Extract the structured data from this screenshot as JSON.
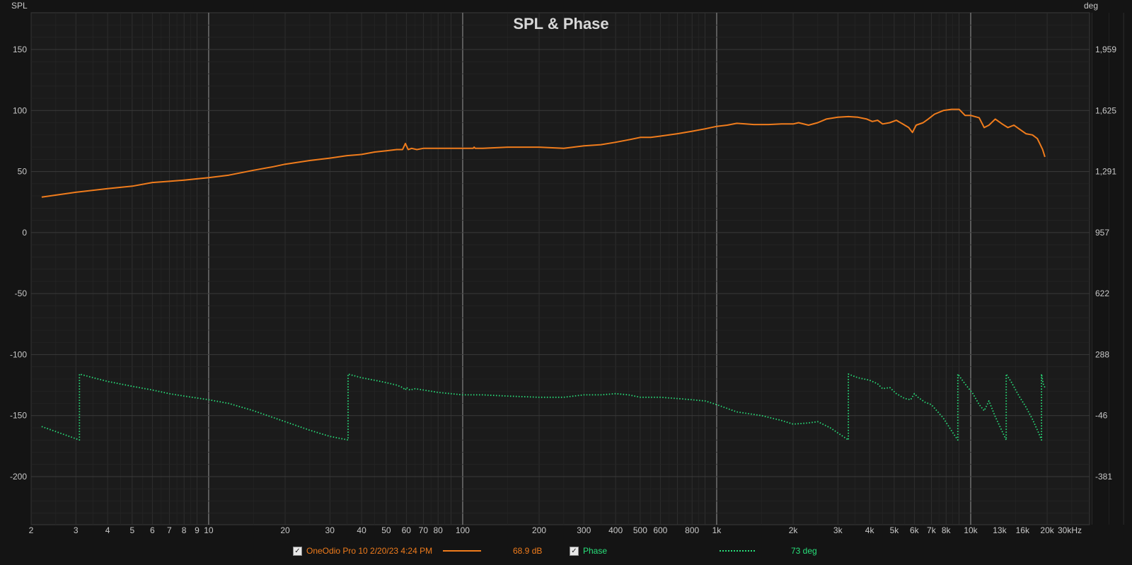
{
  "chart_data": {
    "type": "line",
    "title": "SPL & Phase",
    "xscale": "log",
    "xlim": [
      2,
      40000
    ],
    "x_ticks": [
      {
        "v": 2,
        "label": "2"
      },
      {
        "v": 3,
        "label": "3"
      },
      {
        "v": 4,
        "label": "4"
      },
      {
        "v": 5,
        "label": "5"
      },
      {
        "v": 6,
        "label": "6"
      },
      {
        "v": 7,
        "label": "7"
      },
      {
        "v": 8,
        "label": "8"
      },
      {
        "v": 9,
        "label": "9"
      },
      {
        "v": 10,
        "label": "10"
      },
      {
        "v": 20,
        "label": "20"
      },
      {
        "v": 30,
        "label": "30"
      },
      {
        "v": 40,
        "label": "40"
      },
      {
        "v": 50,
        "label": "50"
      },
      {
        "v": 60,
        "label": "60"
      },
      {
        "v": 70,
        "label": "70"
      },
      {
        "v": 80,
        "label": "80"
      },
      {
        "v": 100,
        "label": "100"
      },
      {
        "v": 200,
        "label": "200"
      },
      {
        "v": 300,
        "label": "300"
      },
      {
        "v": 400,
        "label": "400"
      },
      {
        "v": 500,
        "label": "500"
      },
      {
        "v": 600,
        "label": "600"
      },
      {
        "v": 800,
        "label": "800"
      },
      {
        "v": 1000,
        "label": "1k"
      },
      {
        "v": 2000,
        "label": "2k"
      },
      {
        "v": 3000,
        "label": "3k"
      },
      {
        "v": 4000,
        "label": "4k"
      },
      {
        "v": 5000,
        "label": "5k"
      },
      {
        "v": 6000,
        "label": "6k"
      },
      {
        "v": 7000,
        "label": "7k"
      },
      {
        "v": 8000,
        "label": "8k"
      },
      {
        "v": 10000,
        "label": "10k"
      },
      {
        "v": 13000,
        "label": "13k"
      },
      {
        "v": 16000,
        "label": "16k"
      },
      {
        "v": 20000,
        "label": "20k"
      },
      {
        "v": 30000,
        "label": "30kHz"
      }
    ],
    "y_left": {
      "label": "SPL",
      "lim": [
        -240,
        180
      ],
      "ticks": [
        150,
        100,
        50,
        0,
        -50,
        -100,
        -150,
        -200
      ]
    },
    "y_right": {
      "label": "deg",
      "ticks": [
        "1,959",
        "1,625",
        "1,291",
        "957",
        "622",
        "288",
        "-46",
        "-381"
      ]
    },
    "series": [
      {
        "name": "OneOdio Pro 10 2/20/23 4:24 PM",
        "color": "#f07c1c",
        "style": "solid",
        "readout": "68.9 dB",
        "x": [
          2.2,
          3,
          4,
          5,
          6,
          7,
          8,
          9,
          10,
          12,
          15,
          18,
          20,
          25,
          30,
          35,
          40,
          45,
          50,
          55,
          58,
          59.5,
          61,
          63,
          66,
          70,
          80,
          100,
          110,
          111,
          112,
          120,
          150,
          200,
          250,
          300,
          350,
          400,
          450,
          500,
          550,
          600,
          700,
          800,
          900,
          1000,
          1100,
          1200,
          1300,
          1400,
          1600,
          1800,
          2000,
          2100,
          2300,
          2500,
          2700,
          3000,
          3300,
          3600,
          3900,
          4100,
          4300,
          4500,
          4800,
          5100,
          5400,
          5700,
          5900,
          6100,
          6500,
          6800,
          7200,
          7800,
          8400,
          9000,
          9500,
          10000,
          10800,
          11300,
          11800,
          12500,
          13300,
          14000,
          14800,
          15500,
          16500,
          17500,
          18300,
          18700,
          19200,
          19600
        ],
        "y": [
          29,
          33,
          36,
          38,
          41,
          42,
          43,
          44,
          45,
          47,
          51,
          54,
          56,
          59,
          61,
          63,
          64,
          66,
          67,
          68,
          68,
          73,
          68,
          69,
          68,
          69,
          69,
          69,
          69,
          70,
          69,
          69,
          70,
          70,
          69,
          71,
          72,
          74,
          76,
          78,
          78,
          79,
          81,
          83,
          85,
          87,
          88,
          89.5,
          89,
          88.5,
          88.5,
          89,
          89,
          90,
          88,
          90,
          93,
          94.5,
          95,
          94.5,
          93,
          91,
          92,
          89,
          90,
          92,
          89,
          86,
          82,
          88,
          90,
          93,
          97,
          100,
          101,
          101,
          96,
          96,
          94,
          86,
          88,
          93,
          89,
          86,
          88,
          85,
          81,
          80,
          77,
          73,
          68,
          62
        ]
      },
      {
        "name": "Phase",
        "color": "#28e07a",
        "style": "dotted",
        "readout": "73 deg",
        "x": [
          2.2,
          3.1,
          3.1,
          4,
          5,
          6,
          7,
          8,
          10,
          12,
          15,
          20,
          25,
          30,
          35.4,
          35.4,
          40,
          45,
          50,
          55,
          58,
          59.5,
          60,
          62,
          65,
          70,
          80,
          100,
          110,
          120,
          150,
          200,
          250,
          300,
          350,
          400,
          450,
          500,
          600,
          700,
          800,
          900,
          1000,
          1200,
          1500,
          1800,
          2000,
          2300,
          2500,
          2800,
          3300,
          3300,
          3600,
          4000,
          4300,
          4500,
          4800,
          5100,
          5500,
          5800,
          6000,
          6200,
          6600,
          7000,
          7800,
          8500,
          8900,
          8900,
          9500,
          10200,
          10800,
          11300,
          11800,
          12500,
          13300,
          13800,
          13800,
          14500,
          15500,
          16500,
          17500,
          18500,
          19000,
          19000,
          19300,
          19600
        ],
        "y": [
          -159,
          -170,
          -116,
          -122,
          -126,
          -129,
          -132,
          -134,
          -137,
          -140,
          -146,
          -155,
          -162,
          -167,
          -170,
          -116,
          -119,
          -121,
          -123,
          -125,
          -127,
          -129,
          -127,
          -129,
          -128,
          -129,
          -131,
          -133,
          -133,
          -133,
          -134,
          -135,
          -135,
          -133,
          -133,
          -132,
          -133,
          -135,
          -135,
          -136,
          -137,
          -138,
          -141,
          -147,
          -150,
          -154,
          -157,
          -156,
          -155,
          -160,
          -170,
          -116,
          -119,
          -121,
          -124,
          -128,
          -127,
          -132,
          -136,
          -137,
          -132,
          -135,
          -139,
          -141,
          -152,
          -164,
          -170,
          -116,
          -124,
          -132,
          -141,
          -146,
          -138,
          -151,
          -163,
          -170,
          -116,
          -123,
          -134,
          -143,
          -153,
          -164,
          -170,
          -116,
          -124,
          -127
        ]
      }
    ]
  },
  "legend": {
    "spl": {
      "label": "OneOdio Pro 10 2/20/23 4:24 PM",
      "value": "68.9 dB",
      "checked": "☑"
    },
    "phase": {
      "label": "Phase",
      "value": "73 deg",
      "checked": "☑"
    }
  },
  "colors": {
    "background": "#141414",
    "plot_bg": "#1b1b1b",
    "grid": "#333333",
    "decade_line": "#9a9a9a",
    "spl": "#f07c1c",
    "phase": "#28e07a"
  }
}
